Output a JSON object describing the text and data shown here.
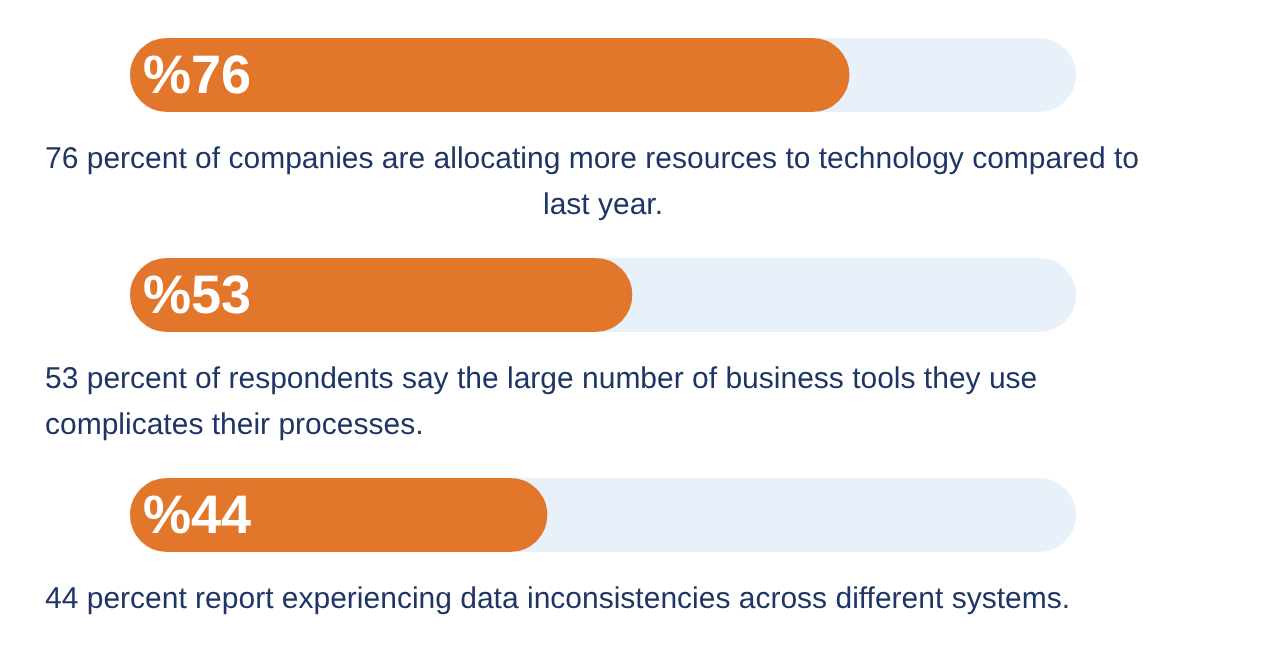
{
  "chart_data": {
    "type": "bar",
    "orientation": "horizontal",
    "categories": [
      null,
      null,
      null
    ],
    "values": [
      76,
      53,
      44
    ],
    "value_labels": [
      "%76",
      "%53",
      "%44"
    ],
    "color": "#e2762b",
    "xlim": [
      0,
      100
    ],
    "tick_labels": false,
    "grid": false,
    "legend": false,
    "annotations": [
      "76 percent of companies are allocating more resources to technology compared to last year.",
      "53 percent of respondents say the large number of business tools they use complicates their processes.",
      "44 percent report experiencing data inconsistencies across different systems."
    ]
  }
}
